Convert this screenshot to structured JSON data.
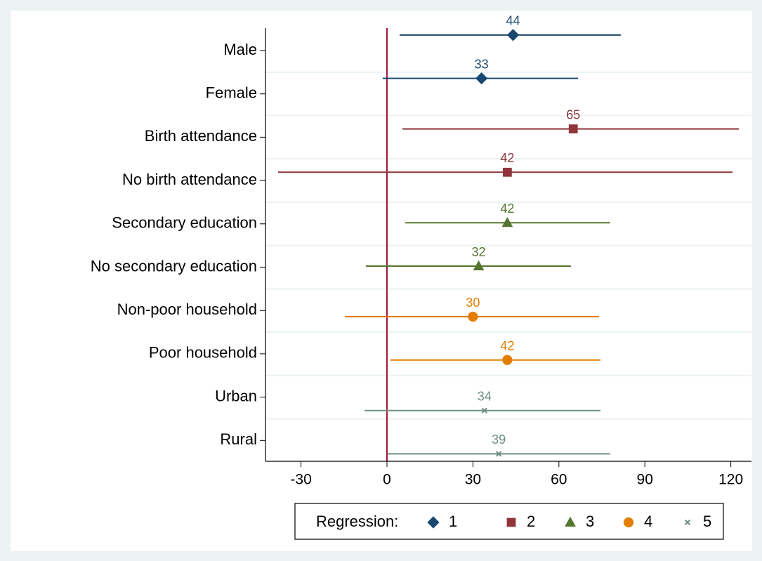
{
  "chart_data": {
    "type": "coefplot",
    "categories": [
      "Male",
      "Female",
      "Birth attendance",
      "No birth attendance",
      "Secondary education",
      "No secondary education",
      "Non-poor household",
      "Poor household",
      "Urban",
      "Rural"
    ],
    "series": [
      {
        "name": "1",
        "color": "#1a476f",
        "marker": "diamond",
        "values": [
          44,
          33,
          null,
          null,
          null,
          null,
          null,
          null,
          null,
          null
        ],
        "ci_low": [
          4.4,
          -1.5,
          null,
          null,
          null,
          null,
          null,
          null,
          null,
          null
        ],
        "ci_high": [
          81.6,
          66.7,
          null,
          null,
          null,
          null,
          null,
          null,
          null,
          null
        ]
      },
      {
        "name": "2",
        "color": "#90353b",
        "marker": "square",
        "values": [
          null,
          null,
          65,
          42,
          null,
          null,
          null,
          null,
          null,
          null
        ],
        "ci_low": [
          null,
          null,
          5.4,
          -38,
          null,
          null,
          null,
          null,
          null,
          null
        ],
        "ci_high": [
          null,
          null,
          122.8,
          120.6,
          null,
          null,
          null,
          null,
          null,
          null
        ]
      },
      {
        "name": "3",
        "color": "#55752f",
        "marker": "triangle",
        "values": [
          null,
          null,
          null,
          null,
          42,
          32,
          null,
          null,
          null,
          null
        ],
        "ci_low": [
          null,
          null,
          null,
          null,
          6.4,
          -7.4,
          null,
          null,
          null,
          null
        ],
        "ci_high": [
          null,
          null,
          null,
          null,
          77.9,
          64.2,
          null,
          null,
          null,
          null
        ]
      },
      {
        "name": "4",
        "color": "#e37e00",
        "marker": "circle",
        "values": [
          null,
          null,
          null,
          null,
          null,
          null,
          30,
          42,
          null,
          null
        ],
        "ci_low": [
          null,
          null,
          null,
          null,
          null,
          null,
          -14.7,
          1.2,
          null,
          null
        ],
        "ci_high": [
          null,
          null,
          null,
          null,
          null,
          null,
          74,
          74.5,
          null,
          null
        ]
      },
      {
        "name": "5",
        "color": "#6e8e84",
        "marker": "x",
        "values": [
          null,
          null,
          null,
          null,
          null,
          null,
          null,
          null,
          34,
          39
        ],
        "ci_low": [
          null,
          null,
          null,
          null,
          null,
          null,
          null,
          null,
          -7.8,
          0.2
        ],
        "ci_high": [
          null,
          null,
          null,
          null,
          null,
          null,
          null,
          null,
          74.5,
          77.9
        ]
      }
    ],
    "xlim": [
      -42.4,
      127.2
    ],
    "xticks": [
      -30,
      0,
      30,
      60,
      90,
      120
    ],
    "reference_line": 0,
    "reference_color": "#a0173a",
    "legend_title": "Regression:",
    "legend_position": "bottom"
  }
}
